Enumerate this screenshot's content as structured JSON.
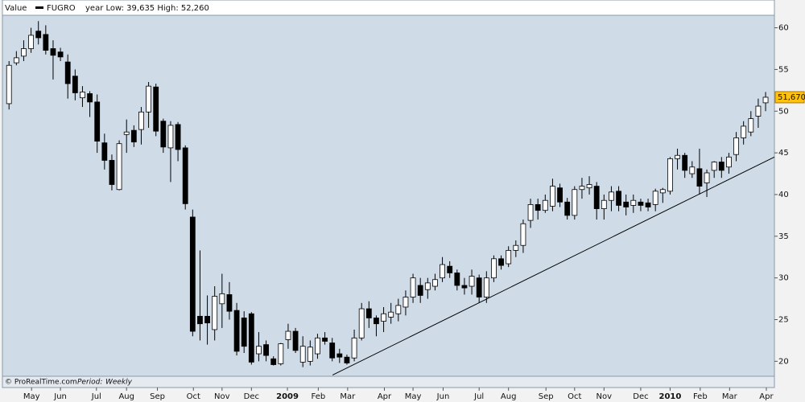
{
  "chart_data": {
    "type": "candlestick",
    "header_label": "Value",
    "series_name": "FUGRO",
    "subtitle": "year Low: 39,635 High: 52,260",
    "source": "© ProRealTime.com",
    "period_label": "Period:",
    "period": "Weekly",
    "up_color": "#ffffff",
    "down_color": "#000000",
    "open": [
      50.9,
      55.8,
      56.6,
      57.5,
      59.6,
      59.2,
      57.5,
      57.1,
      55.9,
      54.2,
      51.6,
      52.1,
      51.1,
      46.2,
      44.1,
      40.6,
      47.2,
      47.7,
      47.8,
      49.9,
      52.9,
      48.8,
      45.6,
      48.4,
      45.6,
      37.3,
      25.4,
      25.4,
      23.8,
      26.9,
      28,
      26.1,
      25.2,
      25.7,
      20.9,
      22,
      20.3,
      19.7,
      22.6,
      23.6,
      19.9,
      20,
      20.9,
      22.8,
      22.2,
      20.9,
      20.5,
      20.4,
      22.8,
      26.3,
      25.2,
      24.8,
      25.3,
      25.7,
      26.5,
      27.7,
      29.1,
      28.6,
      29,
      30,
      31.4,
      30.6,
      29.1,
      29,
      30,
      27.7,
      30,
      32.3,
      31.7,
      33.3,
      33.9,
      36.9,
      38.8,
      38.1,
      38.6,
      40.8,
      39.1,
      37.5,
      40.6,
      40.8,
      41,
      38.3,
      39.3,
      40.4,
      39.1,
      38.7,
      39.1,
      39,
      38.8,
      40.2,
      40.4,
      44.3,
      44.7,
      42.5,
      43.1,
      41.4,
      42.9,
      43.9,
      43.3,
      44.8,
      46.8,
      47.5,
      49.4,
      51
    ],
    "high": [
      56,
      57.2,
      58.5,
      60,
      60.8,
      60.3,
      58.5,
      57.6,
      56.8,
      55,
      53,
      52.4,
      52,
      47.3,
      44.8,
      46.5,
      49,
      48.3,
      50.5,
      53.5,
      53.3,
      49.1,
      48.8,
      48.7,
      45.9,
      38.2,
      33.3,
      27.9,
      29,
      30.5,
      29.5,
      27,
      26,
      25.9,
      23.5,
      22.5,
      20.6,
      22.2,
      24.5,
      24,
      23,
      22.5,
      23.3,
      23.5,
      22.8,
      21.5,
      20.8,
      23.8,
      27,
      27.2,
      25.5,
      26.5,
      27,
      27.5,
      28.5,
      30.5,
      30,
      30,
      30.5,
      32.5,
      32,
      31,
      30,
      31,
      30.4,
      30.8,
      32.7,
      32.7,
      33.8,
      34.5,
      37,
      39.5,
      39.5,
      40,
      41.9,
      41.3,
      39.6,
      41,
      42,
      42.2,
      41.5,
      40,
      41,
      41,
      40,
      40,
      39.5,
      39.5,
      40.7,
      40.8,
      44.5,
      45.5,
      45,
      44,
      45.5,
      43,
      44,
      44.5,
      45,
      47.5,
      48.8,
      50,
      51.5,
      52.3
    ],
    "low": [
      50.2,
      55.5,
      56,
      57,
      58,
      56.8,
      53.8,
      56,
      51.5,
      51.3,
      50.5,
      49.3,
      45,
      43,
      40.5,
      40.5,
      45,
      45.7,
      46,
      48,
      47,
      45,
      41.5,
      44,
      38.2,
      23,
      22.5,
      22,
      22.5,
      24,
      25,
      20.7,
      21,
      19.6,
      20,
      20,
      19.5,
      19.5,
      21.5,
      21,
      19.3,
      19.5,
      20.3,
      22,
      20,
      19.8,
      19.6,
      20,
      22.5,
      24,
      23,
      23.5,
      24.5,
      24.8,
      25.5,
      27,
      27,
      27.5,
      28.5,
      29.5,
      30,
      28.5,
      28,
      28,
      27,
      27,
      29.5,
      31,
      31.3,
      32.5,
      33,
      36,
      37,
      37.8,
      38,
      38.5,
      37,
      37,
      39.5,
      40,
      37,
      37,
      38,
      38,
      37.5,
      37.8,
      38,
      38,
      38,
      39,
      40,
      43,
      42,
      42,
      40,
      39.7,
      42,
      42,
      42.5,
      44,
      46,
      47,
      48,
      50
    ],
    "close": [
      55.5,
      56.4,
      57.5,
      59.1,
      58.8,
      57.3,
      56.7,
      56.5,
      53.3,
      52.2,
      52.3,
      51.1,
      46.4,
      44.1,
      41.2,
      46.1,
      47.5,
      46.3,
      49.9,
      53,
      47.6,
      45.7,
      48.3,
      45.4,
      38.9,
      23.6,
      24.5,
      24.6,
      27.8,
      28.1,
      26,
      21.2,
      21.8,
      19.9,
      21.8,
      20.7,
      19.6,
      22.1,
      23.6,
      21.3,
      21.8,
      21.7,
      22.8,
      22.4,
      20.4,
      20.5,
      19.8,
      22.8,
      26.3,
      25.2,
      24.5,
      25.7,
      25.9,
      26.7,
      27.7,
      30,
      27.9,
      29.4,
      29.8,
      31.6,
      30.6,
      29.1,
      28.8,
      30.2,
      27.7,
      30,
      32.3,
      31.5,
      33.3,
      33.9,
      36.5,
      38.8,
      38.1,
      39.3,
      41,
      39.1,
      37.5,
      40.6,
      41,
      41.2,
      38.3,
      39.3,
      40.3,
      38.7,
      38.5,
      39.3,
      38.7,
      38.5,
      40.4,
      40.6,
      44.3,
      44.7,
      42.9,
      43.3,
      41,
      42.6,
      43.9,
      42.9,
      44.5,
      46.8,
      48.2,
      49.1,
      50.6,
      51.67
    ],
    "last_value_label": "51,670",
    "trendline": {
      "x": [
        44.05,
        104.2
      ],
      "y": [
        18.35,
        44.5
      ]
    },
    "xlim": [
      -0.9,
      104.2
    ],
    "xticks": [
      {
        "value": 3.07,
        "label": "May"
      },
      {
        "value": 7.0,
        "label": "Jun"
      },
      {
        "value": 11.9,
        "label": "Jul"
      },
      {
        "value": 16.0,
        "label": "Aug"
      },
      {
        "value": 20.2,
        "label": "Sep"
      },
      {
        "value": 25.1,
        "label": "Oct"
      },
      {
        "value": 29.0,
        "label": "Nov"
      },
      {
        "value": 33.0,
        "label": "Dec"
      },
      {
        "value": 37.9,
        "label": "2009"
      },
      {
        "value": 42.1,
        "label": "Feb"
      },
      {
        "value": 46.1,
        "label": "Mar"
      },
      {
        "value": 51.1,
        "label": "Apr"
      },
      {
        "value": 55.0,
        "label": "May"
      },
      {
        "value": 59.1,
        "label": "Jun"
      },
      {
        "value": 64.0,
        "label": "Jul"
      },
      {
        "value": 68.0,
        "label": "Aug"
      },
      {
        "value": 73.1,
        "label": "Sep"
      },
      {
        "value": 77.0,
        "label": "Oct"
      },
      {
        "value": 81.0,
        "label": "Nov"
      },
      {
        "value": 86.0,
        "label": "Dec"
      },
      {
        "value": 90.0,
        "label": "2010"
      },
      {
        "value": 94.1,
        "label": "Feb"
      },
      {
        "value": 98.1,
        "label": "Mar"
      },
      {
        "value": 103.1,
        "label": "Apr"
      }
    ],
    "ylim": [
      18.3,
      61.5
    ],
    "yticks": [
      20,
      25,
      30,
      35,
      40,
      45,
      50,
      55,
      60
    ],
    "grid": false
  }
}
